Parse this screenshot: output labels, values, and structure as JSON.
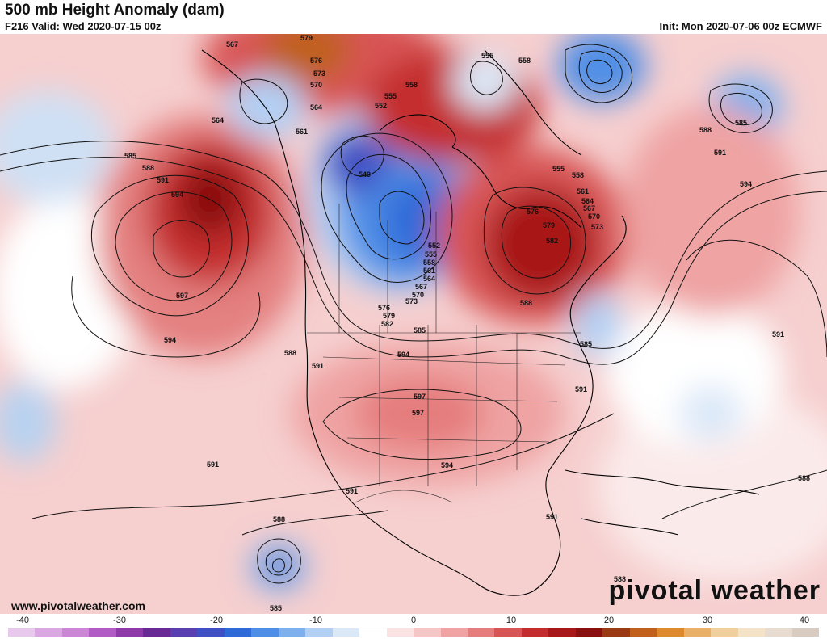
{
  "header": {
    "title": "500 mb Height Anomaly (dam)",
    "valid": "F216 Valid: Wed 2020-07-15 00z",
    "init": "Init: Mon 2020-07-06 00z ECMWF"
  },
  "footer": {
    "website": "www.pivotalweather.com",
    "brand": "pivotal weather"
  },
  "colorbar": {
    "ticks": [
      "-40",
      "-30",
      "-20",
      "-10",
      "0",
      "10",
      "20",
      "30",
      "40"
    ],
    "colors": [
      "#e8c8ec",
      "#dba7e2",
      "#cc86d6",
      "#b05cc4",
      "#8e3aa8",
      "#6a2a96",
      "#5a3fb0",
      "#3f4fc4",
      "#2f6ad8",
      "#4f8ee6",
      "#7fb0ee",
      "#b2d0f4",
      "#dbe8f8",
      "#ffffff",
      "#fbe3e3",
      "#f6c6c6",
      "#efa3a3",
      "#e57d7d",
      "#d85555",
      "#c42d2d",
      "#a81818",
      "#8a1010",
      "#9a3a14",
      "#c0601c",
      "#dc8a2c",
      "#e9b06a",
      "#f0cf9c",
      "#f5e3c8",
      "#e8dcd0",
      "#d8ccc2"
    ]
  },
  "contour_labels": [
    {
      "text": "567"
    },
    {
      "text": "579"
    },
    {
      "text": "576"
    },
    {
      "text": "573"
    },
    {
      "text": "570"
    },
    {
      "text": "564"
    },
    {
      "text": "561"
    },
    {
      "text": "564"
    },
    {
      "text": "558"
    },
    {
      "text": "555"
    },
    {
      "text": "552"
    },
    {
      "text": "555"
    },
    {
      "text": "558"
    },
    {
      "text": "555"
    },
    {
      "text": "558"
    },
    {
      "text": "585"
    },
    {
      "text": "588"
    },
    {
      "text": "591"
    },
    {
      "text": "594"
    },
    {
      "text": "597"
    },
    {
      "text": "594"
    },
    {
      "text": "549"
    },
    {
      "text": "552"
    },
    {
      "text": "555"
    },
    {
      "text": "558"
    },
    {
      "text": "561"
    },
    {
      "text": "564"
    },
    {
      "text": "567"
    },
    {
      "text": "570"
    },
    {
      "text": "573"
    },
    {
      "text": "576"
    },
    {
      "text": "579"
    },
    {
      "text": "582"
    },
    {
      "text": "585"
    },
    {
      "text": "588"
    },
    {
      "text": "591"
    },
    {
      "text": "594"
    },
    {
      "text": "597"
    },
    {
      "text": "597"
    },
    {
      "text": "594"
    },
    {
      "text": "591"
    },
    {
      "text": "591"
    },
    {
      "text": "588"
    },
    {
      "text": "585"
    },
    {
      "text": "561"
    },
    {
      "text": "564"
    },
    {
      "text": "567"
    },
    {
      "text": "570"
    },
    {
      "text": "573"
    },
    {
      "text": "576"
    },
    {
      "text": "579"
    },
    {
      "text": "582"
    },
    {
      "text": "588"
    },
    {
      "text": "585"
    },
    {
      "text": "591"
    },
    {
      "text": "588"
    },
    {
      "text": "591"
    },
    {
      "text": "594"
    },
    {
      "text": "585"
    },
    {
      "text": "591"
    },
    {
      "text": "588"
    },
    {
      "text": "591"
    },
    {
      "text": "588"
    }
  ]
}
